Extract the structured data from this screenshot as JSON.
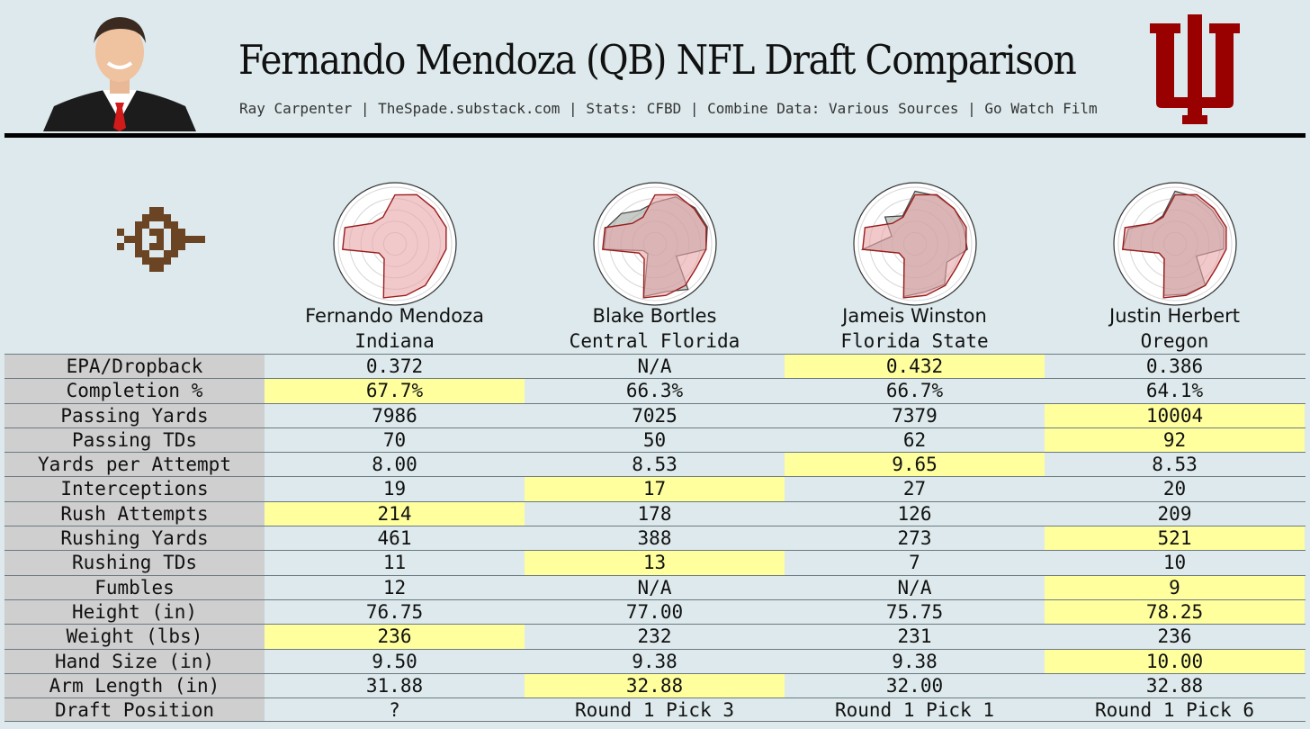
{
  "header": {
    "title": "Fernando Mendoza (QB) NFL Draft Comparison",
    "subtitle": "Ray Carpenter | TheSpade.substack.com | Stats: CFBD | Combine Data: Various Sources | Go Watch Film"
  },
  "colors": {
    "background": "#dde9ec",
    "highlight": "#ffff9e",
    "label_bg": "#cfcfcf",
    "indiana_crimson": "#990000",
    "radar_fill": "#e8a5a8",
    "radar_line": "#9b1c1c",
    "comparison_fill": "#9aa39b"
  },
  "players": [
    {
      "name": "Fernando Mendoza",
      "school": "Indiana"
    },
    {
      "name": "Blake Bortles",
      "school": "Central Florida"
    },
    {
      "name": "Jameis Winston",
      "school": "Florida State"
    },
    {
      "name": "Justin Herbert",
      "school": "Oregon"
    }
  ],
  "chart_data": {
    "type": "table",
    "columns": [
      "Fernando Mendoza",
      "Blake Bortles",
      "Jameis Winston",
      "Justin Herbert"
    ],
    "rows": [
      {
        "label": "EPA/Dropback",
        "values": [
          "0.372",
          "N/A",
          "0.432",
          "0.386"
        ],
        "highlight": 2
      },
      {
        "label": "Completion %",
        "values": [
          "67.7%",
          "66.3%",
          "66.7%",
          "64.1%"
        ],
        "highlight": 0
      },
      {
        "label": "Passing Yards",
        "values": [
          "7986",
          "7025",
          "7379",
          "10004"
        ],
        "highlight": 3
      },
      {
        "label": "Passing TDs",
        "values": [
          "70",
          "50",
          "62",
          "92"
        ],
        "highlight": 3
      },
      {
        "label": "Yards per Attempt",
        "values": [
          "8.00",
          "8.53",
          "9.65",
          "8.53"
        ],
        "highlight": 2
      },
      {
        "label": "Interceptions",
        "values": [
          "19",
          "17",
          "27",
          "20"
        ],
        "highlight": 1
      },
      {
        "label": "Rush Attempts",
        "values": [
          "214",
          "178",
          "126",
          "209"
        ],
        "highlight": 0
      },
      {
        "label": "Rushing Yards",
        "values": [
          "461",
          "388",
          "273",
          "521"
        ],
        "highlight": 3
      },
      {
        "label": "Rushing TDs",
        "values": [
          "11",
          "13",
          "7",
          "10"
        ],
        "highlight": 1
      },
      {
        "label": "Fumbles",
        "values": [
          "12",
          "N/A",
          "N/A",
          "9"
        ],
        "highlight": 3
      },
      {
        "label": "Height (in)",
        "values": [
          "76.75",
          "77.00",
          "75.75",
          "78.25"
        ],
        "highlight": 3
      },
      {
        "label": "Weight (lbs)",
        "values": [
          "236",
          "232",
          "231",
          "236"
        ],
        "highlight": 0
      },
      {
        "label": "Hand Size (in)",
        "values": [
          "9.50",
          "9.38",
          "9.38",
          "10.00"
        ],
        "highlight": 3
      },
      {
        "label": "Arm Length (in)",
        "values": [
          "31.88",
          "32.88",
          "32.00",
          "32.88"
        ],
        "highlight": 1
      },
      {
        "label": "Draft Position",
        "values": [
          "?",
          "Round 1 Pick 3",
          "Round 1 Pick 1",
          "Round 1 Pick 6"
        ],
        "highlight": -1
      }
    ],
    "radar": {
      "type": "radar",
      "range": [
        0,
        1
      ],
      "axes": 15,
      "grid_rings": 5,
      "profiles": [
        {
          "player": "Fernando Mendoza",
          "values": [
            0.8,
            0.88,
            0.86,
            0.88,
            0.84,
            0.78,
            0.84,
            0.86,
            0.9,
            0.3,
            0.3,
            0.86,
            0.86,
            0.5,
            0.48
          ]
        },
        {
          "player": "Blake Bortles",
          "values": [
            0.68,
            0.84,
            0.88,
            0.9,
            0.84,
            0.4,
            0.92,
            0.8,
            0.88,
            0.2,
            0.22,
            0.84,
            0.84,
            0.74,
            0.6
          ]
        },
        {
          "player": "Jameis Winston",
          "values": [
            0.86,
            0.86,
            0.86,
            0.84,
            0.86,
            0.6,
            0.82,
            0.8,
            0.88,
            0.3,
            0.3,
            0.86,
            0.4,
            0.66,
            0.5
          ]
        },
        {
          "player": "Justin Herbert",
          "values": [
            0.86,
            0.84,
            0.82,
            0.84,
            0.8,
            0.4,
            0.84,
            0.84,
            0.86,
            0.3,
            0.3,
            0.86,
            0.8,
            0.5,
            0.5
          ]
        }
      ]
    }
  }
}
